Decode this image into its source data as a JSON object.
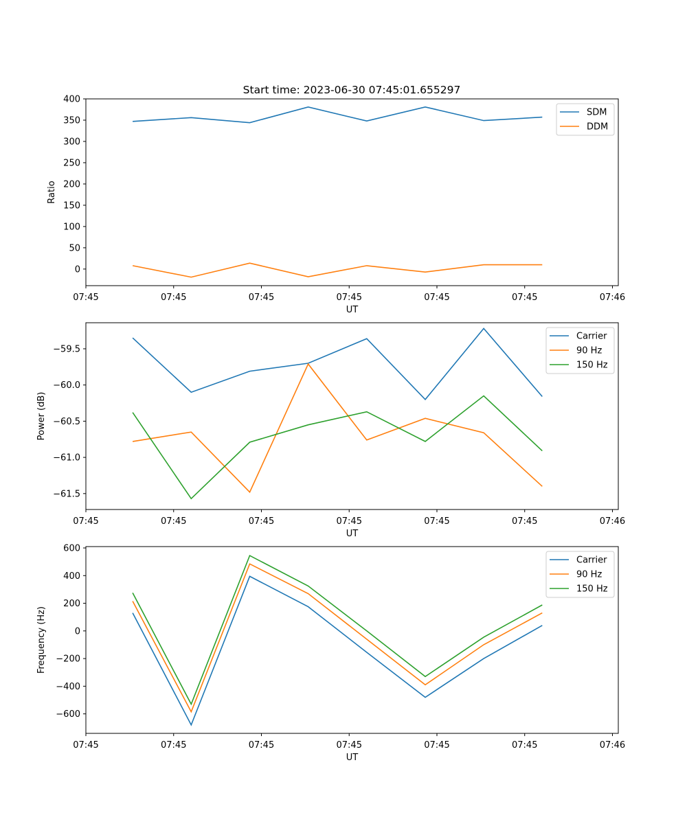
{
  "figure_title": "Start time: 2023-06-30 07:45:01.655297",
  "chart_data": [
    {
      "type": "line",
      "title": "Start time: 2023-06-30 07:45:01.655297",
      "xlabel": "UT",
      "ylabel": "Ratio",
      "x_tick_labels": [
        "07:45",
        "07:45",
        "07:45",
        "07:45",
        "07:45",
        "07:45",
        "07:46"
      ],
      "y_ticks": [
        0,
        50,
        100,
        150,
        200,
        250,
        300,
        350,
        400
      ],
      "y_tick_labels": [
        "0",
        "50",
        "100",
        "150",
        "200",
        "250",
        "300",
        "350",
        "400"
      ],
      "ylim": [
        -39,
        400
      ],
      "x_points": [
        1,
        2,
        3,
        4,
        5,
        6,
        7,
        8
      ],
      "xlim": [
        0.2,
        9.3
      ],
      "x_tick_positions": [
        0.2,
        1.7,
        3.2,
        4.7,
        6.2,
        7.7,
        9.2
      ],
      "grid": false,
      "legend_position": "top-right",
      "series": [
        {
          "name": "SDM",
          "color": "#1f77b4",
          "values": [
            347,
            356,
            344,
            381,
            348,
            381,
            349,
            357
          ]
        },
        {
          "name": "DDM",
          "color": "#ff7f0e",
          "values": [
            8,
            -19,
            14,
            -18,
            8,
            -7,
            10,
            10
          ]
        }
      ]
    },
    {
      "type": "line",
      "xlabel": "UT",
      "ylabel": "Power (dB)",
      "x_tick_labels": [
        "07:45",
        "07:45",
        "07:45",
        "07:45",
        "07:45",
        "07:45",
        "07:46"
      ],
      "y_ticks": [
        -59.5,
        -60.0,
        -60.5,
        -61.0,
        -61.5
      ],
      "y_tick_labels": [
        "−59.5",
        "−60.0",
        "−60.5",
        "−61.0",
        "−61.5"
      ],
      "ylim": [
        -61.72,
        -59.14
      ],
      "x_points": [
        1,
        2,
        3,
        4,
        5,
        6,
        7,
        8
      ],
      "xlim": [
        0.2,
        9.3
      ],
      "x_tick_positions": [
        0.2,
        1.7,
        3.2,
        4.7,
        6.2,
        7.7,
        9.2
      ],
      "grid": false,
      "legend_position": "top-right",
      "series": [
        {
          "name": "Carrier",
          "color": "#1f77b4",
          "values": [
            -59.35,
            -60.1,
            -59.81,
            -59.7,
            -59.36,
            -60.2,
            -59.22,
            -60.16
          ]
        },
        {
          "name": "90 Hz",
          "color": "#ff7f0e",
          "values": [
            -60.78,
            -60.65,
            -61.48,
            -59.71,
            -60.76,
            -60.46,
            -60.66,
            -61.4
          ]
        },
        {
          "name": "150 Hz",
          "color": "#2ca02c",
          "values": [
            -60.38,
            -61.57,
            -60.79,
            -60.55,
            -60.37,
            -60.78,
            -60.15,
            -60.91
          ]
        }
      ]
    },
    {
      "type": "line",
      "xlabel": "UT",
      "ylabel": "Frequency (Hz)",
      "x_tick_labels": [
        "07:45",
        "07:45",
        "07:45",
        "07:45",
        "07:45",
        "07:45",
        "07:46"
      ],
      "y_ticks": [
        600,
        400,
        200,
        0,
        -200,
        -400,
        -600
      ],
      "y_tick_labels": [
        "600",
        "400",
        "200",
        "0",
        "−200",
        "−400",
        "−600"
      ],
      "ylim": [
        -741,
        610
      ],
      "x_points": [
        1,
        2,
        3,
        4,
        5,
        6,
        7,
        8
      ],
      "xlim": [
        0.2,
        9.3
      ],
      "x_tick_positions": [
        0.2,
        1.7,
        3.2,
        4.7,
        6.2,
        7.7,
        9.2
      ],
      "grid": false,
      "legend_position": "top-right",
      "series": [
        {
          "name": "Carrier",
          "color": "#1f77b4",
          "values": [
            130,
            -680,
            395,
            175,
            -155,
            -480,
            -200,
            40
          ]
        },
        {
          "name": "90 Hz",
          "color": "#ff7f0e",
          "values": [
            215,
            -585,
            485,
            270,
            -60,
            -390,
            -100,
            130
          ]
        },
        {
          "name": "150 Hz",
          "color": "#2ca02c",
          "values": [
            275,
            -530,
            545,
            325,
            0,
            -330,
            -45,
            188
          ]
        }
      ]
    }
  ]
}
